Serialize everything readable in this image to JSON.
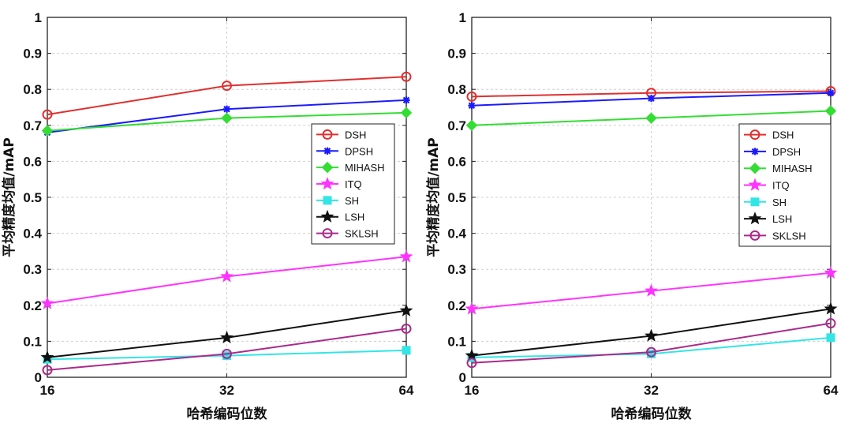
{
  "chart_data": [
    {
      "type": "line",
      "title": "",
      "xlabel": "哈希编码位数",
      "ylabel": "平均精度均值/mAP",
      "x": [
        16,
        32,
        64
      ],
      "x_tick_labels": [
        "16",
        "32",
        "64"
      ],
      "ylim": [
        0,
        1
      ],
      "y_ticks": [
        0,
        0.1,
        0.2,
        0.3,
        0.4,
        0.5,
        0.6,
        0.7,
        0.8,
        0.9,
        1
      ],
      "y_tick_labels": [
        "0",
        "0.1",
        "0.2",
        "0.3",
        "0.4",
        "0.5",
        "0.6",
        "0.7",
        "0.8",
        "0.9",
        "1"
      ],
      "grid": true,
      "legend_position": "center-right",
      "series": [
        {
          "name": "DSH",
          "color": "#e03030",
          "marker": "circle",
          "values": [
            0.73,
            0.81,
            0.835
          ]
        },
        {
          "name": "DPSH",
          "color": "#1a1aff",
          "marker": "asterisk",
          "values": [
            0.68,
            0.745,
            0.77
          ]
        },
        {
          "name": "MIHASH",
          "color": "#33dd33",
          "marker": "diamond",
          "values": [
            0.685,
            0.72,
            0.735
          ]
        },
        {
          "name": "ITQ",
          "color": "#ff33ff",
          "marker": "star",
          "values": [
            0.205,
            0.28,
            0.335
          ]
        },
        {
          "name": "SH",
          "color": "#33e5e5",
          "marker": "square",
          "values": [
            0.05,
            0.06,
            0.075
          ]
        },
        {
          "name": "LSH",
          "color": "#111111",
          "marker": "star",
          "values": [
            0.055,
            0.11,
            0.185
          ]
        },
        {
          "name": "SKLSH",
          "color": "#aa2a8a",
          "marker": "circle",
          "values": [
            0.02,
            0.065,
            0.135
          ]
        }
      ]
    },
    {
      "type": "line",
      "title": "",
      "xlabel": "哈希编码位数",
      "ylabel": "平均精度均值/mAP",
      "x": [
        16,
        32,
        64
      ],
      "x_tick_labels": [
        "16",
        "32",
        "64"
      ],
      "ylim": [
        0,
        1
      ],
      "y_ticks": [
        0,
        0.1,
        0.2,
        0.3,
        0.4,
        0.5,
        0.6,
        0.7,
        0.8,
        0.9,
        1
      ],
      "y_tick_labels": [
        "0",
        "0.1",
        "0.2",
        "0.3",
        "0.4",
        "0.5",
        "0.6",
        "0.7",
        "0.8",
        "0.9",
        "1"
      ],
      "grid": true,
      "legend_position": "center-right",
      "series": [
        {
          "name": "DSH",
          "color": "#e03030",
          "marker": "circle",
          "values": [
            0.78,
            0.79,
            0.795
          ]
        },
        {
          "name": "DPSH",
          "color": "#1a1aff",
          "marker": "asterisk",
          "values": [
            0.755,
            0.775,
            0.79
          ]
        },
        {
          "name": "MIHASH",
          "color": "#33dd33",
          "marker": "diamond",
          "values": [
            0.7,
            0.72,
            0.74
          ]
        },
        {
          "name": "ITQ",
          "color": "#ff33ff",
          "marker": "star",
          "values": [
            0.19,
            0.24,
            0.29
          ]
        },
        {
          "name": "SH",
          "color": "#33e5e5",
          "marker": "square",
          "values": [
            0.055,
            0.065,
            0.11
          ]
        },
        {
          "name": "LSH",
          "color": "#111111",
          "marker": "star",
          "values": [
            0.06,
            0.115,
            0.19
          ]
        },
        {
          "name": "SKLSH",
          "color": "#aa2a8a",
          "marker": "circle",
          "values": [
            0.04,
            0.07,
            0.15
          ]
        }
      ]
    }
  ]
}
